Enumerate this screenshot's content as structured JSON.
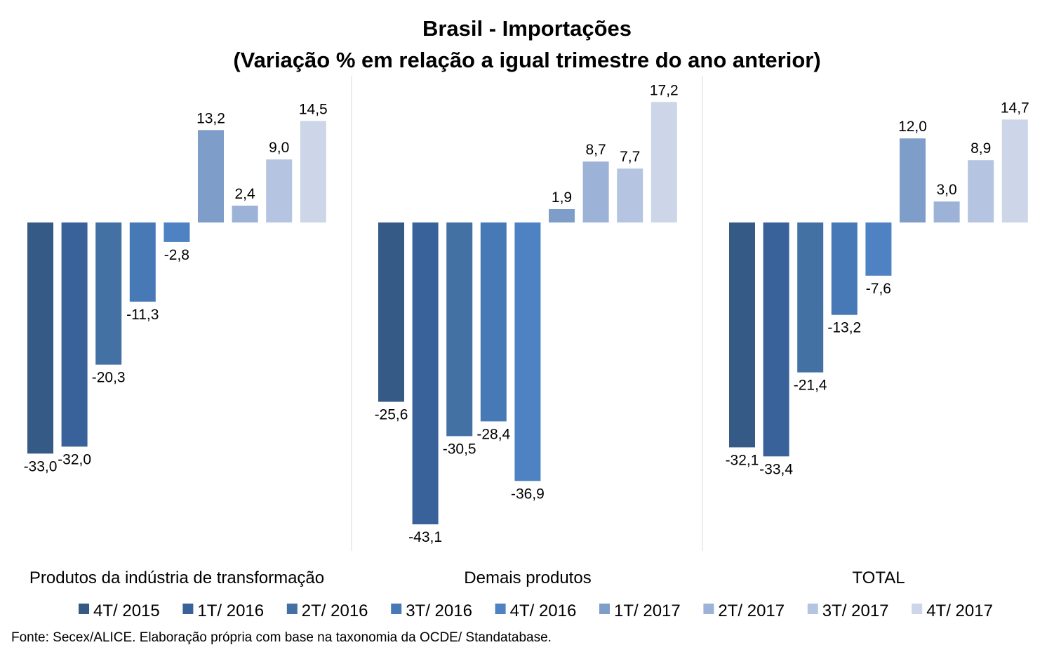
{
  "chart_data": {
    "type": "bar",
    "title_line1": "Brasil - Importações",
    "title_line2": "(Variação % em relação a igual trimestre do ano anterior)",
    "categories": [
      "Produtos da indústria de transformação",
      "Demais produtos",
      "TOTAL"
    ],
    "series": [
      {
        "name": "4T/ 2015",
        "color": "#345a85",
        "values": [
          -33.0,
          -25.6,
          -32.1
        ]
      },
      {
        "name": "1T/ 2016",
        "color": "#39629a",
        "values": [
          -32.0,
          -43.1,
          -33.4
        ]
      },
      {
        "name": "2T/ 2016",
        "color": "#4371a4",
        "values": [
          -20.3,
          -30.5,
          -21.4
        ]
      },
      {
        "name": "3T/ 2016",
        "color": "#4779b6",
        "values": [
          -11.3,
          -28.4,
          -13.2
        ]
      },
      {
        "name": "4T/ 2016",
        "color": "#4f82c2",
        "values": [
          -2.8,
          -36.9,
          -7.6
        ]
      },
      {
        "name": "1T/ 2017",
        "color": "#7f9dc9",
        "values": [
          13.2,
          1.9,
          12.0
        ]
      },
      {
        "name": "2T/ 2017",
        "color": "#9cb2d6",
        "values": [
          2.4,
          8.7,
          3.0
        ]
      },
      {
        "name": "3T/ 2017",
        "color": "#b5c5e1",
        "values": [
          9.0,
          7.7,
          8.9
        ]
      },
      {
        "name": "4T/ 2017",
        "color": "#ccd6e8",
        "values": [
          14.5,
          17.2,
          14.7
        ]
      }
    ],
    "value_labels": [
      [
        "-33,0",
        "-25,6",
        "-32,1"
      ],
      [
        "-32,0",
        "-43,1",
        "-33,4"
      ],
      [
        "-20,3",
        "-30,5",
        "-21,4"
      ],
      [
        "-11,3",
        "-28,4",
        "-13,2"
      ],
      [
        "-2,8",
        "-36,9",
        "-7,6"
      ],
      [
        "13,2",
        "1,9",
        "12,0"
      ],
      [
        "2,4",
        "8,7",
        "3,0"
      ],
      [
        "9,0",
        "7,7",
        "8,9"
      ],
      [
        "14,5",
        "17,2",
        "14,7"
      ]
    ],
    "ylim": [
      -45,
      20
    ],
    "grid": false,
    "legend_position": "bottom"
  },
  "source": "Fonte: Secex/ALICE. Elaboração própria com base na taxonomia da OCDE/ Standatabase."
}
